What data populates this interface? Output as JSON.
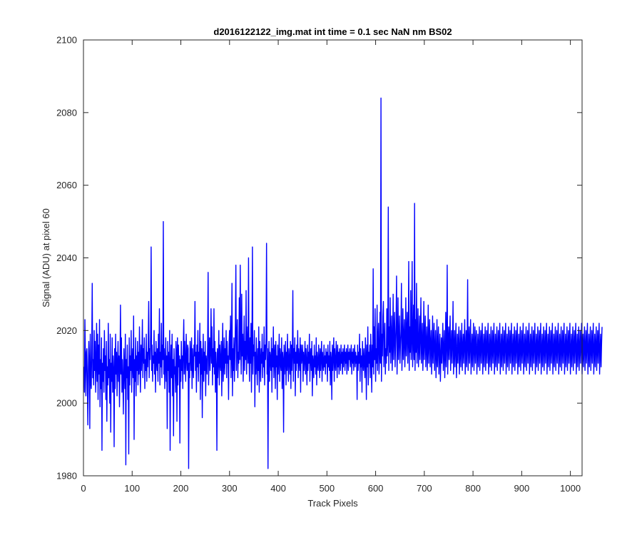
{
  "chart_data": {
    "type": "line",
    "title": "d2016122122_img.mat int time = 0.1 sec  NaN nm BS02",
    "xlabel": "Track Pixels",
    "ylabel": "Signal (ADU) at pixel 60",
    "xlim": [
      0,
      1024
    ],
    "ylim": [
      1980,
      2100
    ],
    "xticks": [
      0,
      100,
      200,
      300,
      400,
      500,
      600,
      700,
      800,
      900,
      1000
    ],
    "yticks": [
      1980,
      2000,
      2020,
      2040,
      2060,
      2080,
      2100
    ],
    "grid": false,
    "legend": "none",
    "series": [
      {
        "color": "#0000ff",
        "x_start": 1,
        "x_step": 1,
        "y": [
          2010,
          2003,
          2023,
          2012,
          2002,
          2014,
          2015,
          2006,
          1994,
          2009,
          2017,
          2011,
          1993,
          2019,
          2006,
          2004,
          2015,
          2033,
          2007,
          2012,
          2005,
          2020,
          2009,
          2017,
          2003,
          2011,
          2022,
          2006,
          2019,
          2001,
          2016,
          2008,
          2023,
          1999,
          2012,
          2004,
          2018,
          1987,
          2011,
          2006,
          2015,
          2003,
          2020,
          2009,
          2013,
          2001,
          2017,
          1995,
          2010,
          2005,
          2022,
          2007,
          2012,
          2000,
          2019,
          1992,
          2011,
          2006,
          2018,
          2003,
          2013,
          2009,
          1988,
          2015,
          2004,
          2019,
          2008,
          2014,
          2002,
          2011,
          2017,
          2006,
          2013,
          1999,
          2010,
          2027,
          2008,
          2018,
          2003,
          2012,
          2006,
          1997,
          2015,
          2009,
          2004,
          2019,
          1983,
          2012,
          2007,
          2016,
          2001,
          2010,
          1986,
          2018,
          2005,
          2013,
          2009,
          2020,
          2003,
          2011,
          2015,
          2007,
          2024,
          1990,
          2012,
          2006,
          2018,
          2002,
          2013,
          2009,
          2017,
          2005,
          2014,
          2008,
          2021,
          2011,
          2003,
          2016,
          2009,
          2013,
          2023,
          2007,
          2015,
          2011,
          2018,
          2004,
          2012,
          2009,
          2019,
          2006,
          2014,
          2010,
          2016,
          2028,
          2007,
          2015,
          2012,
          2019,
          2043,
          2009,
          2016,
          2006,
          2013,
          2011,
          2020,
          2008,
          2014,
          2003,
          2017,
          2012,
          2009,
          2015,
          2006,
          2019,
          2011,
          2026,
          2005,
          2014,
          2010,
          2022,
          2007,
          2016,
          2012,
          2050,
          2008,
          2015,
          2004,
          2011,
          2018,
          2006,
          2013,
          1993,
          2017,
          2009,
          2014,
          2003,
          2020,
          1987,
          2011,
          2016,
          2007,
          2019,
          2002,
          2012,
          1991,
          2015,
          2008,
          2010,
          2003,
          2017,
          2014,
          1995,
          2018,
          2005,
          2016,
          2010,
          2013,
          1989,
          2012,
          2006,
          2017,
          2009,
          2013,
          2004,
          2015,
          2023,
          2008,
          2017,
          2011,
          2006,
          2019,
          2013,
          2009,
          2016,
          2015,
          1982,
          2011,
          2007,
          2017,
          2013,
          2009,
          2018,
          2004,
          2015,
          2011,
          2007,
          2016,
          2013,
          2028,
          2009,
          2014,
          2003,
          2016,
          2010,
          2020,
          2006,
          2014,
          2011,
          2022,
          2001,
          2017,
          2008,
          2015,
          1996,
          2011,
          2019,
          2006,
          2014,
          2009,
          2017,
          2002,
          2013,
          2011,
          2008,
          2016,
          2036,
          2005,
          2013,
          2018,
          2009,
          2014,
          2026,
          2011,
          2021,
          2005,
          2015,
          2010,
          2026,
          2008,
          2017,
          2003,
          2014,
          2010,
          1987,
          2015,
          2007,
          2012,
          2020,
          2005,
          2016,
          2011,
          2009,
          2017,
          2002,
          2013,
          2022,
          2006,
          2011,
          2018,
          2008,
          2015,
          2011,
          2020,
          2007,
          2017,
          2011,
          2013,
          2001,
          2016,
          2020,
          2012,
          2024,
          2007,
          2014,
          2033,
          2002,
          2015,
          2009,
          2018,
          2006,
          2013,
          2022,
          2038,
          2009,
          2015,
          2023,
          2007,
          2014,
          2011,
          2029,
          2012,
          2038,
          2016,
          2008,
          2030,
          2013,
          2019,
          2006,
          2015,
          2024,
          2009,
          2017,
          2012,
          2031,
          2008,
          2016,
          2021,
          2011,
          2040,
          2013,
          2006,
          2018,
          2011,
          2022,
          2003,
          2015,
          2043,
          2008,
          2016,
          2013,
          2020,
          1999,
          2014,
          2008,
          2018,
          2011,
          2005,
          2015,
          2009,
          2021,
          2003,
          2017,
          2012,
          2006,
          2015,
          2011,
          2019,
          2007,
          2014,
          2010,
          2021,
          2005,
          2016,
          2012,
          2018,
          2044,
          2008,
          2015,
          1982,
          2011,
          2017,
          2006,
          2014,
          2012,
          2009,
          2018,
          2003,
          2015,
          2010,
          2021,
          2007,
          2013,
          2016,
          2004,
          2017,
          2010,
          2013,
          2001,
          2016,
          2008,
          2012,
          2019,
          2006,
          2015,
          2011,
          2009,
          2018,
          2004,
          2014,
          2012,
          1992,
          2016,
          2008,
          2012,
          2017,
          2005,
          2014,
          2009,
          2019,
          2011,
          2006,
          2015,
          2012,
          2008,
          2017,
          2004,
          2016,
          2009,
          2014,
          2031,
          2006,
          2015,
          2011,
          2018,
          2002,
          2014,
          2009,
          2016,
          2011,
          2020,
          2007,
          2015,
          2012,
          2009,
          2018,
          2003,
          2016,
          2011,
          2013,
          2016,
          2006,
          2014,
          2009,
          2012,
          2017,
          2008,
          2015,
          2011,
          2005,
          2016,
          2009,
          2014,
          2011,
          2019,
          2006,
          2013,
          2015,
          2009,
          2017,
          2002,
          2013,
          2011,
          2007,
          2016,
          2010,
          2013,
          2008,
          2018,
          2005,
          2014,
          2011,
          2009,
          2016,
          2012,
          2007,
          2015,
          2009,
          2013,
          2017,
          2006,
          2014,
          2011,
          2009,
          2016,
          2010,
          2013,
          2008,
          2015,
          2011,
          2014,
          2006,
          2016,
          2010,
          2013,
          2009,
          2017,
          2005,
          2014,
          2012,
          2001,
          2016,
          2009,
          2013,
          2018,
          2006,
          2015,
          2011,
          2009,
          2017,
          2013,
          2007,
          2016,
          2010,
          2014,
          2008,
          2015,
          2012,
          2009,
          2016,
          2011,
          2014,
          2008,
          2015,
          2010,
          2013,
          2016,
          2009,
          2014,
          2011,
          2015,
          2008,
          2013,
          2016,
          2009,
          2014,
          2012,
          2015,
          2010,
          2013,
          2016,
          2008,
          2014,
          2011,
          2015,
          2009,
          2013,
          2016,
          2010,
          2014,
          2011,
          2013,
          2001,
          2016,
          2009,
          2014,
          2011,
          2019,
          2006,
          2015,
          2010,
          2013,
          2003,
          2017,
          2012,
          2009,
          2015,
          2011,
          2007,
          2018,
          2013,
          2001,
          2016,
          2010,
          2021,
          2005,
          2014,
          2011,
          2016,
          2007,
          2019,
          2013,
          2003,
          2016,
          2010,
          2037,
          2008,
          2021,
          2012,
          2026,
          2006,
          2015,
          2011,
          2027,
          2009,
          2017,
          2022,
          2008,
          2013,
          2025,
          2011,
          2084,
          2006,
          2019,
          2013,
          2024,
          2028,
          2010,
          2016,
          2022,
          2008,
          2015,
          2011,
          2026,
          2013,
          2017,
          2054,
          2009,
          2021,
          2014,
          2029,
          2011,
          2018,
          2024,
          2009,
          2015,
          2030,
          2012,
          2019,
          2025,
          2010,
          2016,
          2022,
          2035,
          2008,
          2015,
          2029,
          2012,
          2018,
          2024,
          2011,
          2016,
          2020,
          2033,
          2009,
          2015,
          2026,
          2012,
          2018,
          2023,
          2010,
          2016,
          2029,
          2013,
          2019,
          2025,
          2011,
          2017,
          2039,
          2009,
          2021,
          2014,
          2031,
          2012,
          2018,
          2039,
          2010,
          2016,
          2027,
          2012,
          2055,
          2009,
          2023,
          2014,
          2033,
          2011,
          2018,
          2026,
          2010,
          2015,
          2024,
          2012,
          2019,
          2029,
          2011,
          2016,
          2022,
          2009,
          2015,
          2028,
          2012,
          2018,
          2024,
          2010,
          2016,
          2021,
          2009,
          2015,
          2027,
          2011,
          2018,
          2023,
          2010,
          2016,
          2020,
          2008,
          2014,
          2024,
          2011,
          2017,
          2022,
          2009,
          2015,
          2020,
          2007,
          2013,
          2023,
          2010,
          2016,
          2021,
          2008,
          2014,
          2019,
          2006,
          2012,
          2018,
          2011,
          2016,
          2022,
          2009,
          2014,
          2020,
          2007,
          2013,
          2025,
          2010,
          2016,
          2038,
          2008,
          2015,
          2021,
          2012,
          2018,
          2024,
          2009,
          2015,
          2020,
          2011,
          2017,
          2028,
          2008,
          2014,
          2020,
          2010,
          2016,
          2022,
          2007,
          2013,
          2019,
          2011,
          2017,
          2021,
          2008,
          2014,
          2020,
          2010,
          2016,
          2022,
          2009,
          2015,
          2019,
          2011,
          2017,
          2023,
          2008,
          2014,
          2020,
          2010,
          2016,
          2034,
          2009,
          2015,
          2021,
          2011,
          2017,
          2023,
          2008,
          2014,
          2019,
          2010,
          2016,
          2022,
          2009,
          2015,
          2021,
          2011,
          2017,
          2020,
          2008,
          2014,
          2019,
          2010,
          2016,
          2021,
          2009,
          2015,
          2020,
          2011,
          2017,
          2022,
          2008,
          2014,
          2019,
          2010,
          2016,
          2021,
          2009,
          2015,
          2020,
          2011,
          2017,
          2022,
          2008,
          2014,
          2019,
          2010,
          2016,
          2021,
          2009,
          2015,
          2020,
          2011,
          2017,
          2022,
          2008,
          2014,
          2019,
          2010,
          2016,
          2021,
          2009,
          2015,
          2020,
          2011,
          2017,
          2022,
          2008,
          2014,
          2019,
          2010,
          2016,
          2021,
          2009,
          2015,
          2020,
          2011,
          2017,
          2022,
          2008,
          2014,
          2019,
          2010,
          2016,
          2021,
          2009,
          2015,
          2020,
          2011,
          2017,
          2022,
          2008,
          2014,
          2019,
          2010,
          2016,
          2021,
          2009,
          2015,
          2020,
          2011,
          2017,
          2022,
          2008,
          2014,
          2019,
          2010,
          2016,
          2021,
          2009,
          2015,
          2020,
          2011,
          2017,
          2022,
          2008,
          2014,
          2019,
          2010,
          2016,
          2021,
          2009,
          2015,
          2020,
          2011,
          2017,
          2022,
          2008,
          2014,
          2019,
          2010,
          2016,
          2021,
          2009,
          2015,
          2020,
          2011,
          2017,
          2022,
          2008,
          2014,
          2019,
          2010,
          2016,
          2021,
          2009,
          2015,
          2020,
          2011,
          2017,
          2022,
          2008,
          2014,
          2019,
          2010,
          2016,
          2021,
          2009,
          2015,
          2020,
          2011,
          2017,
          2022,
          2008,
          2014,
          2019,
          2010,
          2016,
          2021,
          2009,
          2015,
          2020,
          2011,
          2017,
          2022,
          2008,
          2014,
          2019,
          2010,
          2016,
          2021,
          2009,
          2015,
          2020,
          2011,
          2017,
          2022,
          2008,
          2014,
          2019,
          2010,
          2016,
          2021,
          2009,
          2015,
          2020,
          2011,
          2017,
          2022,
          2008,
          2014,
          2019,
          2010,
          2016,
          2021,
          2009,
          2015,
          2020,
          2011,
          2017,
          2022,
          2008,
          2014,
          2019,
          2010,
          2016,
          2021,
          2009,
          2015,
          2020,
          2011,
          2017,
          2022,
          2008,
          2014,
          2019,
          2010,
          2016,
          2021,
          2009,
          2015,
          2020,
          2011,
          2017,
          2022,
          2008,
          2014,
          2019,
          2010,
          2016,
          2021,
          2009,
          2015,
          2020,
          2011,
          2017,
          2022,
          2008,
          2014,
          2019,
          2010,
          2016,
          2021,
          2009,
          2015,
          2020,
          2011,
          2017,
          2022,
          2008,
          2014,
          2019,
          2010,
          2016,
          2021,
          2009,
          2015,
          2020,
          2011,
          2017,
          2022,
          2008,
          2014,
          2019,
          2010,
          2016,
          2021
        ]
      }
    ]
  }
}
